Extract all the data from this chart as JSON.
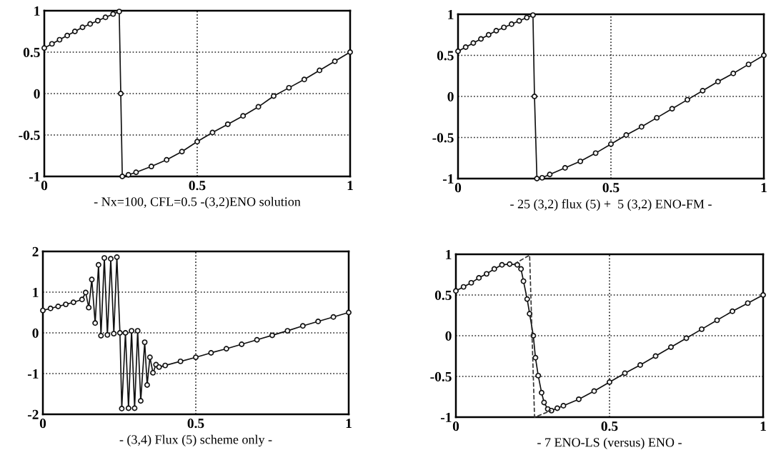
{
  "chart_data": [
    {
      "type": "line",
      "xlabel": "- Nx=100, CFL=0.5 -(3,2)ENO solution",
      "xlim": [
        0,
        1
      ],
      "ylim": [
        -1,
        1
      ],
      "xticks": [
        0,
        0.5,
        1
      ],
      "yticks": [
        -1,
        -0.5,
        0,
        0.5,
        1
      ],
      "grid": true,
      "marker": "circle",
      "line_style": "solid",
      "series": [
        {
          "color": "#111111",
          "x": [
            0,
            0.025,
            0.05,
            0.075,
            0.1,
            0.125,
            0.15,
            0.175,
            0.2,
            0.225,
            0.245,
            0.25,
            0.255,
            0.275,
            0.3,
            0.35,
            0.4,
            0.45,
            0.5,
            0.55,
            0.6,
            0.65,
            0.7,
            0.75,
            0.8,
            0.85,
            0.9,
            0.95,
            1
          ],
          "values": [
            0.55,
            0.6,
            0.65,
            0.7,
            0.75,
            0.8,
            0.84,
            0.88,
            0.92,
            0.96,
            0.99,
            0,
            -1,
            -0.98,
            -0.95,
            -0.88,
            -0.8,
            -0.7,
            -0.58,
            -0.47,
            -0.37,
            -0.27,
            -0.16,
            -0.03,
            0.07,
            0.17,
            0.28,
            0.39,
            0.5
          ]
        }
      ]
    },
    {
      "type": "line",
      "xlabel": "- 25 (3,2) flux (5) +  5 (3,2) ENO-FM -",
      "xlim": [
        0,
        1
      ],
      "ylim": [
        -1,
        1
      ],
      "xticks": [
        0,
        0.5,
        1
      ],
      "yticks": [
        -1,
        -0.5,
        0,
        0.5,
        1
      ],
      "grid": true,
      "marker": "circle",
      "line_style": "solid",
      "series": [
        {
          "color": "#111111",
          "x": [
            0,
            0.025,
            0.05,
            0.075,
            0.1,
            0.125,
            0.15,
            0.175,
            0.2,
            0.225,
            0.245,
            0.25,
            0.258,
            0.275,
            0.3,
            0.35,
            0.4,
            0.45,
            0.5,
            0.55,
            0.6,
            0.65,
            0.7,
            0.75,
            0.8,
            0.85,
            0.9,
            0.95,
            1
          ],
          "values": [
            0.55,
            0.6,
            0.65,
            0.7,
            0.75,
            0.8,
            0.84,
            0.88,
            0.92,
            0.96,
            0.99,
            0,
            -1,
            -0.99,
            -0.95,
            -0.87,
            -0.79,
            -0.69,
            -0.58,
            -0.47,
            -0.37,
            -0.26,
            -0.15,
            -0.04,
            0.07,
            0.18,
            0.28,
            0.39,
            0.5
          ]
        }
      ]
    },
    {
      "type": "line",
      "xlabel": "- (3,4) Flux (5) scheme only -",
      "xlim": [
        0,
        1
      ],
      "ylim": [
        -2,
        2
      ],
      "xticks": [
        0,
        0.5,
        1
      ],
      "yticks": [
        -2,
        -1,
        0,
        1,
        2
      ],
      "grid": true,
      "marker": "circle",
      "line_style": "solid",
      "series": [
        {
          "color": "#111111",
          "x": [
            0,
            0.025,
            0.05,
            0.075,
            0.1,
            0.128,
            0.14,
            0.15,
            0.16,
            0.171,
            0.182,
            0.19,
            0.201,
            0.211,
            0.222,
            0.232,
            0.242,
            0.252,
            0.258,
            0.27,
            0.28,
            0.29,
            0.3,
            0.31,
            0.32,
            0.333,
            0.341,
            0.35,
            0.36,
            0.37,
            0.38,
            0.4,
            0.45,
            0.5,
            0.55,
            0.6,
            0.65,
            0.7,
            0.75,
            0.8,
            0.85,
            0.9,
            0.95,
            1
          ],
          "values": [
            0.55,
            0.6,
            0.65,
            0.7,
            0.75,
            0.82,
            0.99,
            0.62,
            1.31,
            0.24,
            1.67,
            -0.07,
            1.84,
            -0.05,
            1.82,
            -0.02,
            1.86,
            0,
            -1.86,
            0,
            -1.85,
            0.05,
            -1.85,
            0.05,
            -1.67,
            -0.23,
            -1.28,
            -0.6,
            -0.98,
            -0.78,
            -0.84,
            -0.8,
            -0.7,
            -0.6,
            -0.49,
            -0.39,
            -0.28,
            -0.17,
            -0.06,
            0.05,
            0.17,
            0.28,
            0.39,
            0.5
          ]
        }
      ]
    },
    {
      "type": "line",
      "xlabel": "- 7 ENO-LS (versus) ENO -",
      "xlim": [
        0,
        1
      ],
      "ylim": [
        -1,
        1
      ],
      "xticks": [
        0,
        0.5,
        1
      ],
      "yticks": [
        -1,
        -0.5,
        0,
        0.5,
        1
      ],
      "grid": true,
      "marker": "circle",
      "line_style": "solid",
      "series": [
        {
          "color": "#111111",
          "x": [
            0,
            0.025,
            0.05,
            0.075,
            0.1,
            0.125,
            0.15,
            0.175,
            0.2,
            0.212,
            0.22,
            0.232,
            0.24,
            0.252,
            0.259,
            0.268,
            0.279,
            0.287,
            0.299,
            0.311,
            0.33,
            0.35,
            0.4,
            0.45,
            0.5,
            0.55,
            0.6,
            0.65,
            0.7,
            0.75,
            0.8,
            0.85,
            0.9,
            0.95,
            1
          ],
          "values": [
            0.55,
            0.6,
            0.65,
            0.71,
            0.76,
            0.82,
            0.87,
            0.88,
            0.87,
            0.82,
            0.67,
            0.45,
            0.27,
            0,
            -0.27,
            -0.49,
            -0.7,
            -0.82,
            -0.9,
            -0.92,
            -0.89,
            -0.86,
            -0.78,
            -0.68,
            -0.57,
            -0.46,
            -0.36,
            -0.25,
            -0.14,
            -0.03,
            0.08,
            0.19,
            0.3,
            0.4,
            0.5
          ]
        },
        {
          "color": "#333333",
          "marker": "none",
          "line_style": "dashed",
          "x": [
            0.19,
            0.24,
            0.256,
            0.31
          ],
          "values": [
            0.88,
            0.99,
            -1,
            -0.92
          ]
        }
      ]
    }
  ]
}
